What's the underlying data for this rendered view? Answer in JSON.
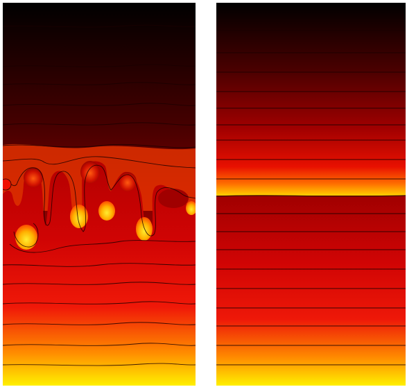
{
  "colormap": {
    "stops": [
      "#000000",
      "#3a0000",
      "#8a0000",
      "#d80808",
      "#ff3a00",
      "#ffa000",
      "#ffe800"
    ]
  },
  "panels": [
    {
      "id": "left",
      "state": "unstable"
    },
    {
      "id": "right",
      "state": "stable"
    }
  ]
}
